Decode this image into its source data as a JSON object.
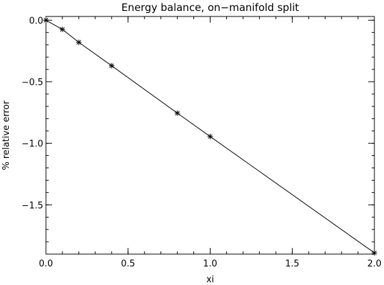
{
  "chart_data": {
    "type": "line",
    "title": "Energy balance, on−manifold split",
    "xlabel": "xi",
    "ylabel": "% relative error",
    "xlim": [
      0.0,
      2.0
    ],
    "ylim": [
      -1.9,
      0.03
    ],
    "xticks": [
      {
        "value": 0.0,
        "label": "0.0"
      },
      {
        "value": 0.5,
        "label": "0.5"
      },
      {
        "value": 1.0,
        "label": "1.0"
      },
      {
        "value": 1.5,
        "label": "1.5"
      },
      {
        "value": 2.0,
        "label": "2.0"
      }
    ],
    "yticks": [
      {
        "value": 0.0,
        "label": "0.0"
      },
      {
        "value": -0.5,
        "label": "−0.5"
      },
      {
        "value": -1.0,
        "label": "−1.0"
      },
      {
        "value": -1.5,
        "label": "−1.5"
      }
    ],
    "x_minor_step": 0.1,
    "y_minor_step": 0.1,
    "marker": "asterisk",
    "line_color": "#000000",
    "grid": false,
    "series": [
      {
        "x": [
          0.0,
          0.1,
          0.2,
          0.4,
          0.8,
          1.0,
          2.0
        ],
        "y": [
          0.0,
          -0.075,
          -0.18,
          -0.37,
          -0.755,
          -0.945,
          -1.89
        ]
      }
    ]
  }
}
